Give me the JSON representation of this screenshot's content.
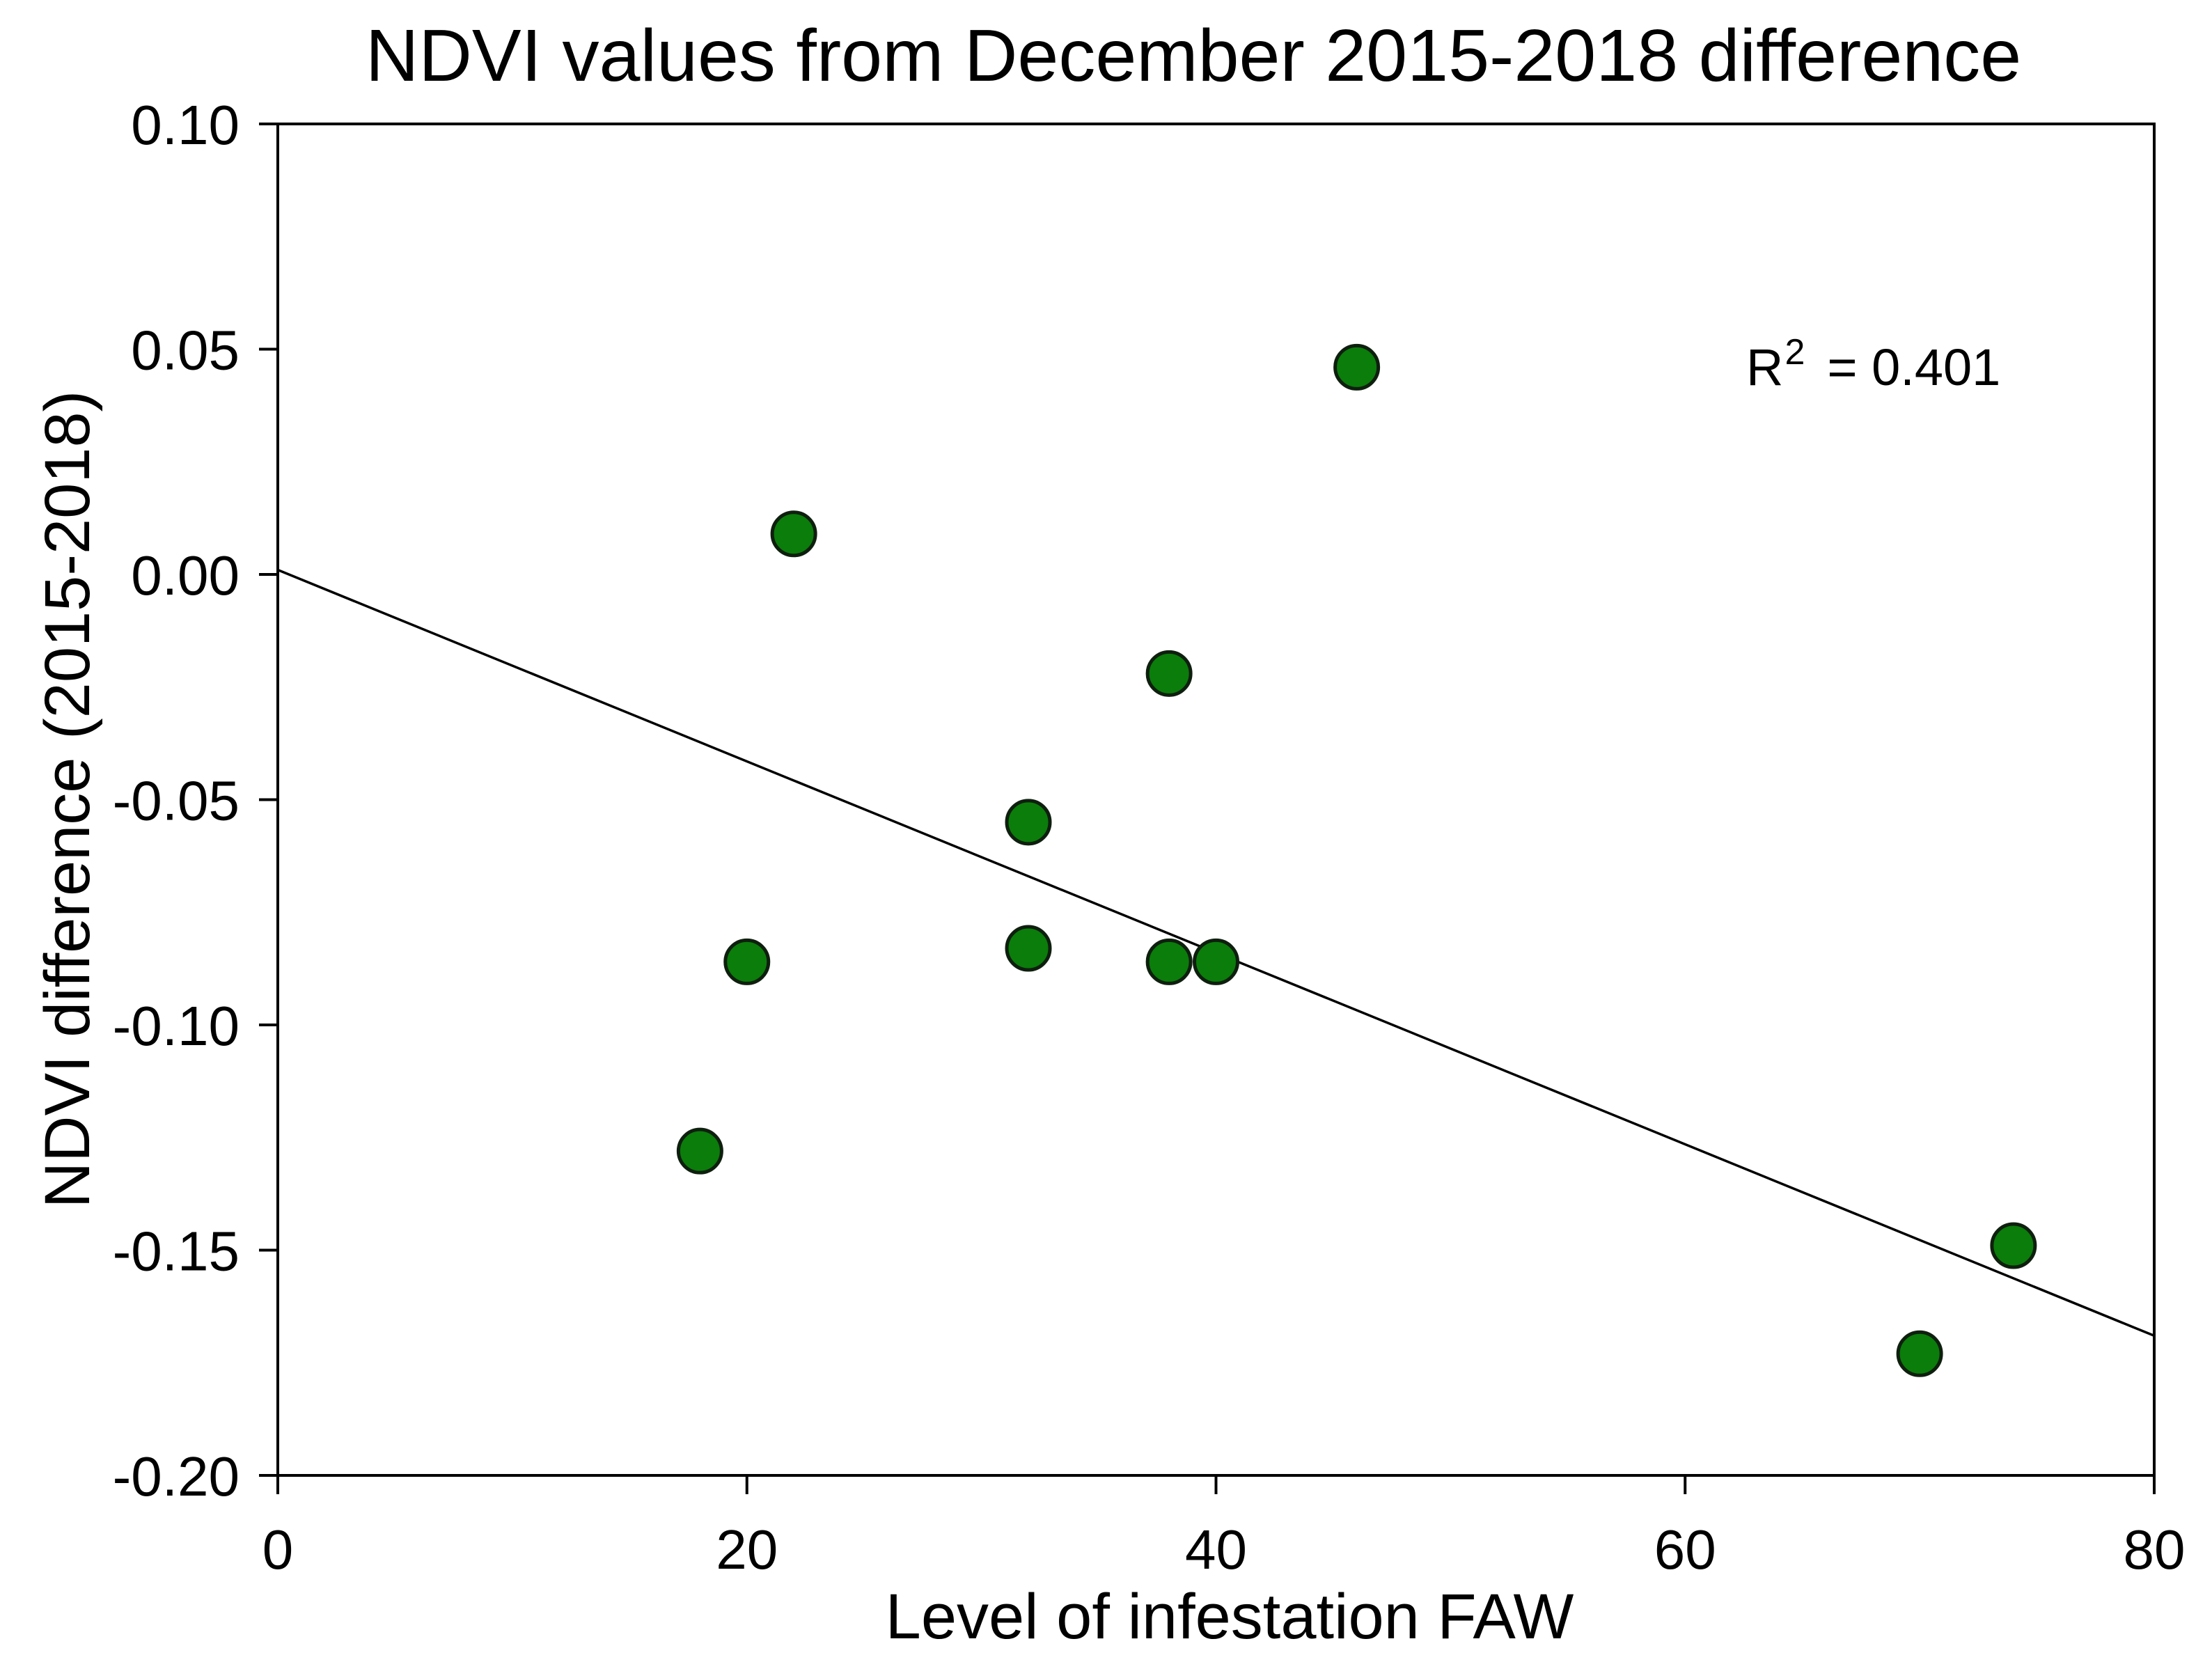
{
  "chart_data": {
    "type": "scatter",
    "title": "NDVI values from December 2015-2018 difference",
    "xlabel": "Level of infestation FAW",
    "ylabel": "NDVI difference (2015-2018)",
    "xlim": [
      0,
      80
    ],
    "ylim": [
      -0.2,
      0.1
    ],
    "xticks": [
      0,
      20,
      40,
      60,
      80
    ],
    "xtick_labels": [
      "0",
      "20",
      "40",
      "60",
      "80"
    ],
    "yticks": [
      0.1,
      0.05,
      0,
      -0.05,
      -0.1,
      -0.15,
      -0.2
    ],
    "ytick_labels": [
      "0.10",
      "0.05",
      "0.00",
      "-0.05",
      "-0.10",
      "-0.15",
      "-0.20"
    ],
    "grid": false,
    "series": [
      {
        "x": [
          18,
          20,
          22,
          32,
          32,
          38,
          38,
          40,
          46,
          70,
          74
        ],
        "y": [
          -0.128,
          -0.086,
          0.009,
          -0.055,
          -0.083,
          -0.022,
          -0.086,
          -0.086,
          0.046,
          -0.173,
          -0.149
        ]
      }
    ],
    "fit_line": {
      "x": [
        0,
        80
      ],
      "y": [
        0.001,
        -0.169
      ]
    },
    "annotation": {
      "base": "R",
      "superscript": "2",
      "text": "= 0.401"
    }
  },
  "colors": {
    "background": "#ffffff",
    "text": "#000000",
    "axis": "#000000",
    "fit_line": "#000000",
    "marker_fill": "#0a7d0a",
    "marker_edge": "#0f1f0f"
  }
}
